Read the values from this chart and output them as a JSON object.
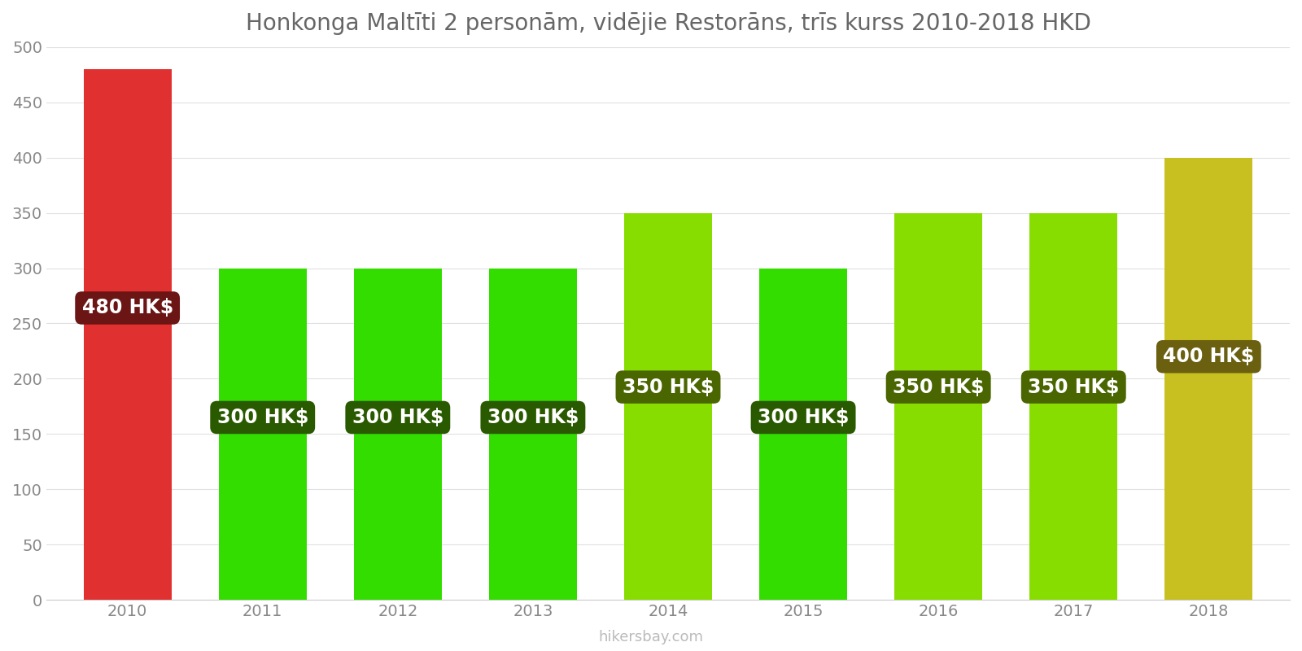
{
  "years": [
    2010,
    2011,
    2012,
    2013,
    2014,
    2015,
    2016,
    2017,
    2018
  ],
  "values": [
    480,
    300,
    300,
    300,
    350,
    300,
    350,
    350,
    400
  ],
  "bar_colors": [
    "#e03030",
    "#33dd00",
    "#33dd00",
    "#33dd00",
    "#88dd00",
    "#33dd00",
    "#88dd00",
    "#88dd00",
    "#c8c020"
  ],
  "label_bg_colors": [
    "#6b1515",
    "#2a5a00",
    "#2a5a00",
    "#2a5a00",
    "#4a6600",
    "#2a5a00",
    "#4a6600",
    "#4a6600",
    "#6a6010"
  ],
  "title": "Honkonga Maltīti 2 personām, vidējie Restorāns, trīs kurss 2010-2018 HKD",
  "ylim": [
    0,
    500
  ],
  "yticks": [
    0,
    50,
    100,
    150,
    200,
    250,
    300,
    350,
    400,
    450,
    500
  ],
  "label_text_color": "#ffffff",
  "background_color": "#ffffff",
  "watermark": "hikersbay.com",
  "title_fontsize": 20,
  "tick_fontsize": 14,
  "label_fontsize": 17
}
